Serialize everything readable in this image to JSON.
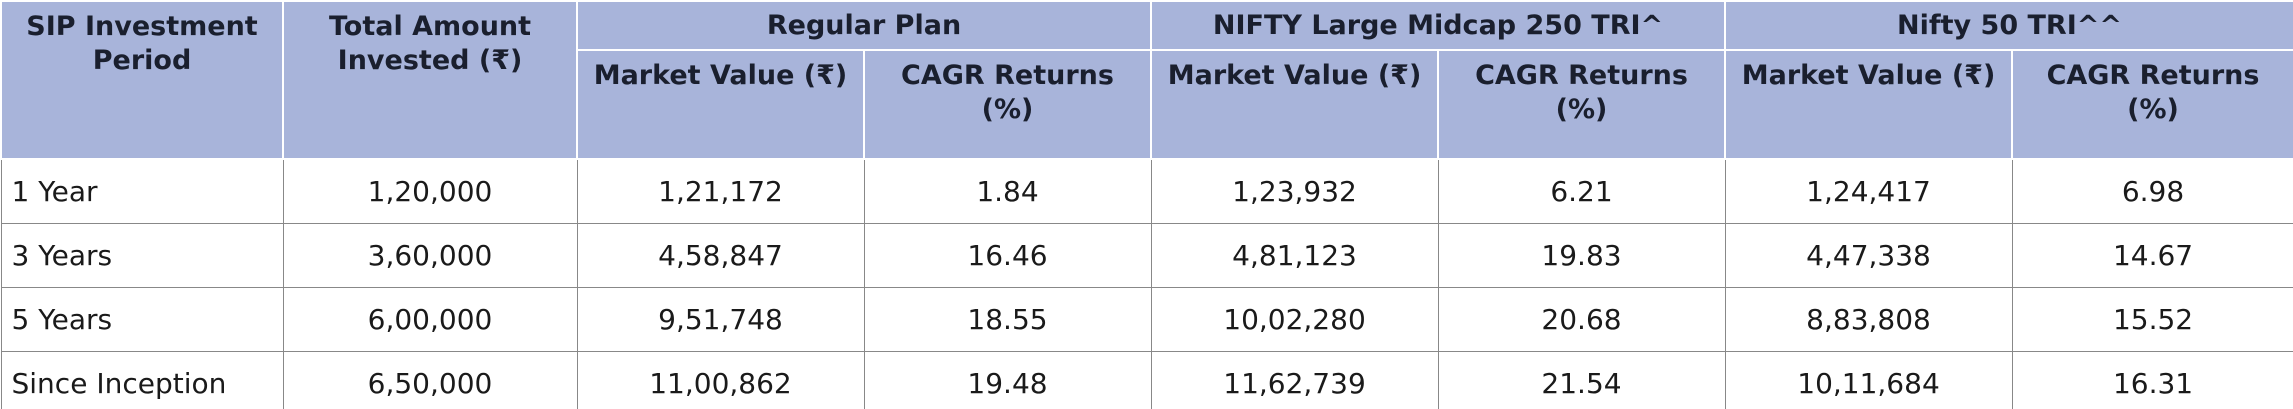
{
  "table": {
    "header": {
      "period": "SIP Investment Period",
      "invested": "Total Amount Invested (₹)",
      "groups": [
        "Regular Plan",
        "NIFTY Large Midcap 250 TRI^",
        "Nifty 50 TRI^^"
      ],
      "subheaders": [
        "Market Value (₹)",
        "CAGR Returns (%)",
        "Market Value (₹)",
        "CAGR Returns (%)",
        "Market Value (₹)",
        "CAGR Returns (%)"
      ]
    },
    "rows": [
      [
        "1 Year",
        "1,20,000",
        "1,21,172",
        "1.84",
        "1,23,932",
        "6.21",
        "1,24,417",
        "6.98"
      ],
      [
        "3 Years",
        "3,60,000",
        "4,58,847",
        "16.46",
        "4,81,123",
        "19.83",
        "4,47,338",
        "14.67"
      ],
      [
        "5 Years",
        "6,00,000",
        "9,51,748",
        "18.55",
        "10,02,280",
        "20.68",
        "8,83,808",
        "15.52"
      ],
      [
        "Since Inception",
        "6,50,000",
        "11,00,862",
        "19.48",
        "11,62,739",
        "21.54",
        "10,11,684",
        "16.31"
      ]
    ]
  }
}
